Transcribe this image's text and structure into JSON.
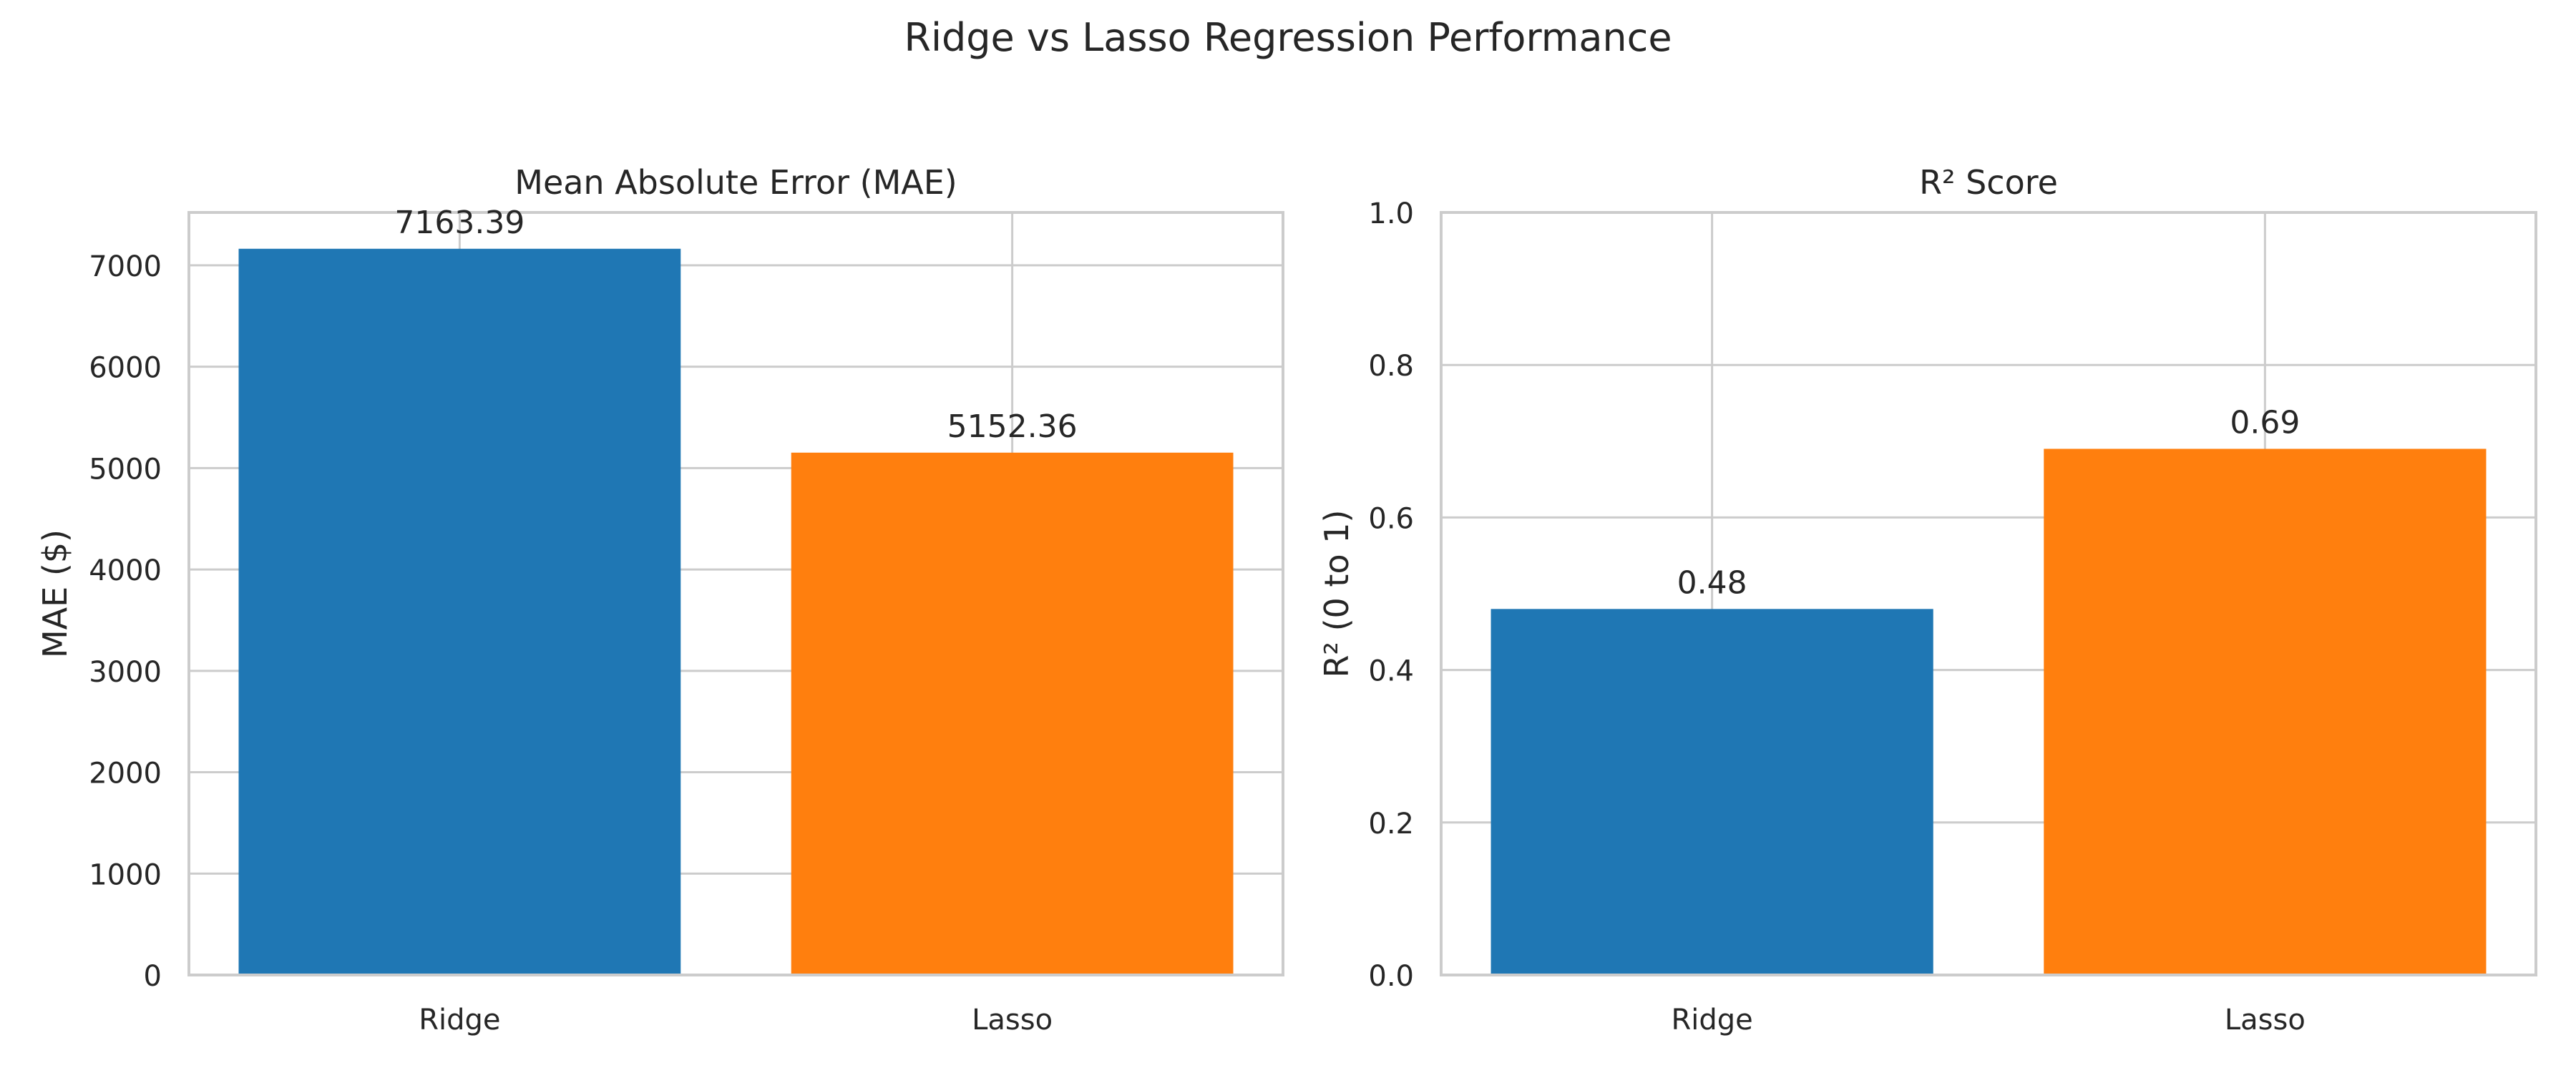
{
  "figure": {
    "title": "Ridge vs Lasso Regression Performance"
  },
  "chart_data": [
    {
      "type": "bar",
      "title": "Mean Absolute Error (MAE)",
      "xlabel": "",
      "ylabel": "MAE ($)",
      "categories": [
        "Ridge",
        "Lasso"
      ],
      "values": [
        7163.39,
        5152.36
      ],
      "value_labels": [
        "7163.39",
        "5152.36"
      ],
      "colors": [
        "#1f77b4",
        "#ff7f0e"
      ],
      "ylim": [
        0,
        7521.56
      ],
      "yticks": [
        0,
        1000,
        2000,
        3000,
        4000,
        5000,
        6000,
        7000
      ],
      "ytick_labels": [
        "0",
        "1000",
        "2000",
        "3000",
        "4000",
        "5000",
        "6000",
        "7000"
      ],
      "grid": true
    },
    {
      "type": "bar",
      "title": "R² Score",
      "xlabel": "",
      "ylabel": "R² (0 to 1)",
      "categories": [
        "Ridge",
        "Lasso"
      ],
      "values": [
        0.48,
        0.69
      ],
      "value_labels": [
        "0.48",
        "0.69"
      ],
      "colors": [
        "#1f77b4",
        "#ff7f0e"
      ],
      "ylim": [
        0,
        1
      ],
      "yticks": [
        0,
        0.2,
        0.4,
        0.6,
        0.8,
        1.0
      ],
      "ytick_labels": [
        "0.0",
        "0.2",
        "0.4",
        "0.6",
        "0.8",
        "1.0"
      ],
      "grid": true
    }
  ]
}
